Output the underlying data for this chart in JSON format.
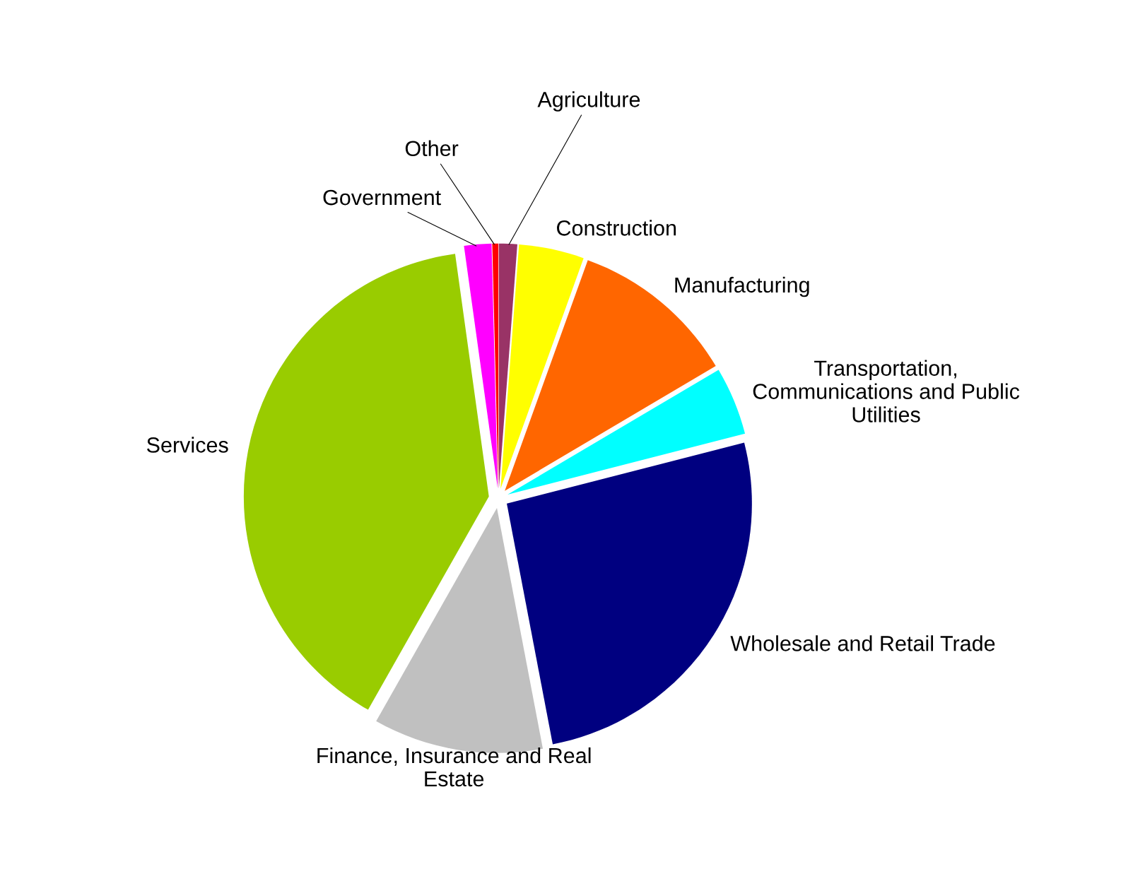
{
  "chart_data": {
    "type": "pie",
    "categories": [
      "Agriculture",
      "Construction",
      "Manufacturing",
      "Transportation,\nCommunications and Public\nUtilities",
      "Wholesale and Retail Trade",
      "Finance, Insurance and Real\nEstate",
      "Services",
      "Government",
      "Other"
    ],
    "values": [
      1.2,
      4.3,
      11.0,
      4.5,
      26.0,
      11.2,
      39.6,
      1.8,
      0.4
    ],
    "colors": [
      "#993366",
      "#ffff00",
      "#ff6600",
      "#00ffff",
      "#000080",
      "#c0c0c0",
      "#99cc00",
      "#ff00ff",
      "#ff0000"
    ]
  }
}
